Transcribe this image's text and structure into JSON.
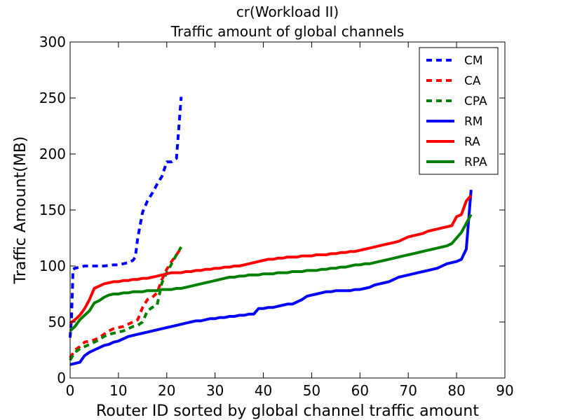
{
  "chart_data": {
    "type": "line",
    "title": "cr(Workload II)",
    "subtitle": "Traffic amount of global channels",
    "xlabel": "Router ID sorted by global channel traffic amount",
    "ylabel": "Traffic Amount(MB)",
    "xlim": [
      0,
      90
    ],
    "ylim": [
      0,
      300
    ],
    "xticks": [
      0,
      10,
      20,
      30,
      40,
      50,
      60,
      70,
      80,
      90
    ],
    "yticks": [
      0,
      50,
      100,
      150,
      200,
      250,
      300
    ],
    "grid": false,
    "legend_position": "top-right",
    "series": [
      {
        "name": "CM",
        "color": "#0000ff",
        "style": "dashed",
        "x": [
          0,
          0.3,
          0.6,
          1,
          2,
          3,
          5,
          7,
          9,
          10,
          11,
          12,
          13,
          13.5,
          14,
          15,
          16,
          17,
          18,
          19,
          20,
          21,
          22,
          23
        ],
        "y": [
          36,
          55,
          97,
          98,
          99,
          100,
          100,
          100,
          101,
          101,
          102,
          103,
          105,
          108,
          125,
          148,
          158,
          165,
          173,
          180,
          193,
          193,
          196,
          251
        ]
      },
      {
        "name": "CA",
        "color": "#ff0000",
        "style": "dashed",
        "x": [
          0,
          1,
          2,
          3,
          4,
          5,
          6,
          7,
          8,
          9,
          10,
          11,
          12,
          13,
          14,
          15,
          16,
          17,
          18,
          19,
          20,
          21,
          22,
          23
        ],
        "y": [
          18,
          25,
          28,
          32,
          33,
          34,
          36,
          39,
          42,
          44,
          45,
          46,
          48,
          50,
          52,
          63,
          70,
          72,
          76,
          88,
          97,
          104,
          110,
          116
        ]
      },
      {
        "name": "CPA",
        "color": "#008000",
        "style": "dashed",
        "x": [
          0,
          1,
          2,
          3,
          4,
          5,
          6,
          7,
          8,
          9,
          10,
          11,
          12,
          13,
          14,
          15,
          16,
          17,
          18,
          19,
          20,
          21,
          22,
          23
        ],
        "y": [
          16,
          23,
          26,
          28,
          30,
          32,
          34,
          37,
          39,
          40,
          41,
          42,
          44,
          46,
          47,
          50,
          60,
          63,
          65,
          85,
          94,
          102,
          110,
          117
        ]
      },
      {
        "name": "RM",
        "color": "#0000ff",
        "style": "solid",
        "x": [
          0,
          1,
          2,
          3,
          4,
          5,
          6,
          7,
          8,
          9,
          10,
          11,
          12,
          13,
          14,
          15,
          16,
          17,
          18,
          19,
          20,
          21,
          22,
          23,
          24,
          25,
          26,
          27,
          28,
          29,
          30,
          31,
          32,
          33,
          34,
          35,
          36,
          37,
          38,
          39,
          40,
          41,
          42,
          43,
          44,
          45,
          46,
          47,
          48,
          49,
          50,
          51,
          52,
          53,
          54,
          55,
          56,
          57,
          58,
          59,
          60,
          61,
          62,
          63,
          64,
          65,
          66,
          67,
          68,
          69,
          70,
          71,
          72,
          73,
          74,
          75,
          76,
          77,
          78,
          79,
          80,
          81,
          82,
          83
        ],
        "y": [
          12,
          13,
          14,
          20,
          23,
          25,
          27,
          29,
          30,
          32,
          33,
          35,
          37,
          38,
          39,
          40,
          41,
          42,
          43,
          44,
          45,
          46,
          47,
          48,
          49,
          50,
          51,
          51,
          52,
          53,
          53,
          54,
          54,
          55,
          55,
          56,
          56,
          57,
          57,
          62,
          62,
          63,
          63,
          64,
          65,
          66,
          66,
          68,
          70,
          73,
          74,
          75,
          76,
          77,
          77,
          78,
          78,
          78,
          78,
          79,
          79,
          80,
          81,
          83,
          84,
          85,
          86,
          88,
          90,
          91,
          92,
          93,
          94,
          95,
          96,
          97,
          98,
          100,
          102,
          103,
          104,
          106,
          115,
          168
        ]
      },
      {
        "name": "RA",
        "color": "#ff0000",
        "style": "solid",
        "x": [
          0,
          1,
          2,
          3,
          4,
          5,
          6,
          7,
          8,
          9,
          10,
          11,
          12,
          13,
          14,
          15,
          16,
          17,
          18,
          19,
          20,
          21,
          22,
          23,
          24,
          25,
          26,
          27,
          28,
          29,
          30,
          31,
          32,
          33,
          34,
          35,
          36,
          37,
          38,
          39,
          40,
          41,
          42,
          43,
          44,
          45,
          46,
          47,
          48,
          49,
          50,
          51,
          52,
          53,
          54,
          55,
          56,
          57,
          58,
          59,
          60,
          61,
          62,
          63,
          64,
          65,
          66,
          67,
          68,
          69,
          70,
          71,
          72,
          73,
          74,
          75,
          76,
          77,
          78,
          79,
          80,
          81,
          82,
          83
        ],
        "y": [
          49,
          52,
          56,
          62,
          70,
          80,
          82,
          84,
          85,
          86,
          86,
          87,
          87,
          88,
          88,
          89,
          89,
          90,
          91,
          92,
          93,
          94,
          94,
          94,
          95,
          95,
          96,
          96,
          97,
          97,
          98,
          98,
          99,
          99,
          100,
          100,
          101,
          102,
          103,
          104,
          105,
          106,
          106,
          107,
          107,
          108,
          108,
          108,
          109,
          109,
          109,
          110,
          110,
          110,
          111,
          111,
          112,
          112,
          113,
          113,
          114,
          115,
          116,
          117,
          118,
          119,
          120,
          121,
          122,
          124,
          126,
          127,
          128,
          129,
          131,
          132,
          133,
          134,
          135,
          136,
          144,
          146,
          158,
          163
        ]
      },
      {
        "name": "RPA",
        "color": "#008000",
        "style": "solid",
        "x": [
          0,
          1,
          2,
          3,
          4,
          5,
          6,
          7,
          8,
          9,
          10,
          11,
          12,
          13,
          14,
          15,
          16,
          17,
          18,
          19,
          20,
          21,
          22,
          23,
          24,
          25,
          26,
          27,
          28,
          29,
          30,
          31,
          32,
          33,
          34,
          35,
          36,
          37,
          38,
          39,
          40,
          41,
          42,
          43,
          44,
          45,
          46,
          47,
          48,
          49,
          50,
          51,
          52,
          53,
          54,
          55,
          56,
          57,
          58,
          59,
          60,
          61,
          62,
          63,
          64,
          65,
          66,
          67,
          68,
          69,
          70,
          71,
          72,
          73,
          74,
          75,
          76,
          77,
          78,
          79,
          80,
          81,
          82,
          83
        ],
        "y": [
          42,
          46,
          52,
          56,
          60,
          67,
          69,
          72,
          74,
          75,
          75,
          76,
          76,
          77,
          77,
          77,
          78,
          78,
          78,
          79,
          79,
          79,
          80,
          80,
          81,
          82,
          83,
          84,
          85,
          86,
          87,
          88,
          89,
          90,
          90,
          91,
          91,
          92,
          92,
          92,
          93,
          93,
          93,
          94,
          94,
          94,
          95,
          95,
          95,
          96,
          96,
          96,
          97,
          97,
          98,
          98,
          99,
          99,
          100,
          101,
          101,
          102,
          102,
          103,
          104,
          105,
          106,
          107,
          108,
          109,
          110,
          111,
          112,
          113,
          114,
          115,
          116,
          117,
          118,
          120,
          125,
          130,
          138,
          146
        ]
      }
    ]
  }
}
